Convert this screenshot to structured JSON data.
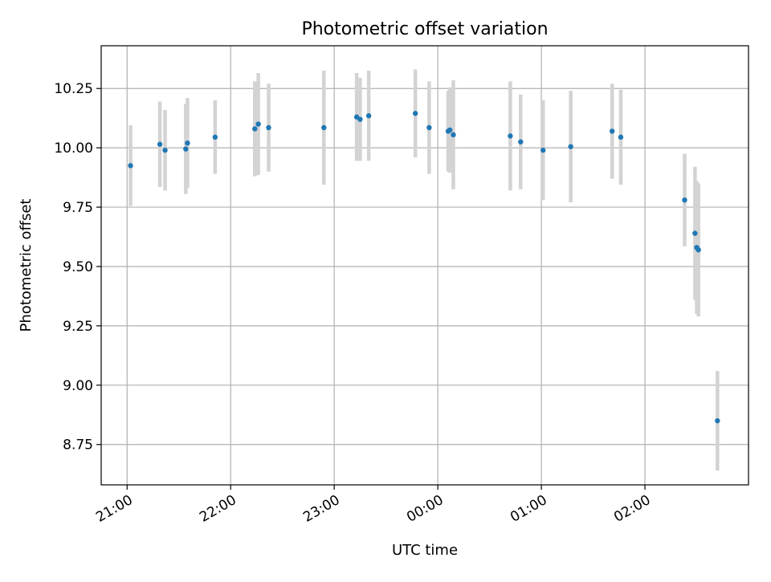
{
  "chart_data": {
    "type": "scatter",
    "title": "Photometric offset variation",
    "xlabel": "UTC time",
    "ylabel": "Photometric offset",
    "x_unit": "hours",
    "xlim": [
      "20:45",
      "03:00"
    ],
    "ylim": [
      8.58,
      10.43
    ],
    "x_ticks": [
      "21:00",
      "22:00",
      "23:00",
      "00:00",
      "01:00",
      "02:00"
    ],
    "y_ticks": [
      "8.75",
      "9.00",
      "9.25",
      "9.50",
      "9.75",
      "10.00",
      "10.25"
    ],
    "grid": true,
    "point_color": "#1f77b4",
    "errorbar_color": "#d3d3d3",
    "points": [
      {
        "t": "21:02",
        "y": 9.925,
        "err": 0.17
      },
      {
        "t": "21:19",
        "y": 10.015,
        "err": 0.18
      },
      {
        "t": "21:22",
        "y": 9.99,
        "err": 0.17
      },
      {
        "t": "21:34",
        "y": 9.995,
        "err": 0.19
      },
      {
        "t": "21:35",
        "y": 10.02,
        "err": 0.19
      },
      {
        "t": "21:51",
        "y": 10.045,
        "err": 0.155
      },
      {
        "t": "22:14",
        "y": 10.08,
        "err": 0.2
      },
      {
        "t": "22:16",
        "y": 10.1,
        "err": 0.215
      },
      {
        "t": "22:22",
        "y": 10.085,
        "err": 0.185
      },
      {
        "t": "22:54",
        "y": 10.085,
        "err": 0.24
      },
      {
        "t": "23:13",
        "y": 10.13,
        "err": 0.185
      },
      {
        "t": "23:15",
        "y": 10.12,
        "err": 0.175
      },
      {
        "t": "23:20",
        "y": 10.135,
        "err": 0.19
      },
      {
        "t": "23:47",
        "y": 10.145,
        "err": 0.185
      },
      {
        "t": "23:55",
        "y": 10.085,
        "err": 0.195
      },
      {
        "t": "00:06",
        "y": 10.07,
        "err": 0.17
      },
      {
        "t": "00:07",
        "y": 10.075,
        "err": 0.18
      },
      {
        "t": "00:09",
        "y": 10.055,
        "err": 0.23
      },
      {
        "t": "00:42",
        "y": 10.05,
        "err": 0.23
      },
      {
        "t": "00:48",
        "y": 10.025,
        "err": 0.2
      },
      {
        "t": "01:01",
        "y": 9.99,
        "err": 0.21
      },
      {
        "t": "01:17",
        "y": 10.005,
        "err": 0.235
      },
      {
        "t": "01:41",
        "y": 10.07,
        "err": 0.2
      },
      {
        "t": "01:46",
        "y": 10.045,
        "err": 0.2
      },
      {
        "t": "02:23",
        "y": 9.78,
        "err": 0.195
      },
      {
        "t": "02:29",
        "y": 9.64,
        "err": 0.28
      },
      {
        "t": "02:30",
        "y": 9.58,
        "err": 0.28
      },
      {
        "t": "02:31",
        "y": 9.57,
        "err": 0.28
      },
      {
        "t": "02:42",
        "y": 8.85,
        "err": 0.21
      }
    ]
  }
}
